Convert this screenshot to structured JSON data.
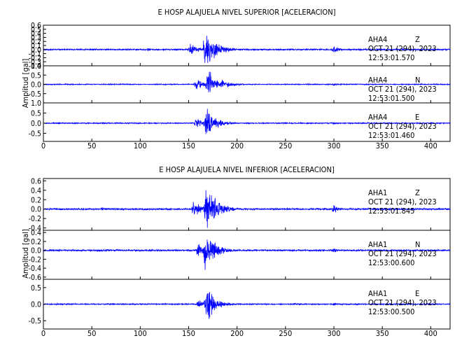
{
  "chart_data": [
    {
      "type": "line",
      "title": "E HOSP ALAJUELA NIVEL SUPERIOR [ACELERACION]",
      "ylabel": "Amplitud [gal]",
      "xlim": [
        0,
        420
      ],
      "x_ticks": [
        "0",
        "50",
        "100",
        "150",
        "200",
        "250",
        "300",
        "350",
        "400"
      ],
      "line_color": "#0000ff",
      "traces": [
        {
          "station": "AHA4",
          "component": "Z",
          "date": "OCT 21 (294), 2023",
          "time": "12:53:01.570",
          "ylim": [
            -0.4,
            0.6
          ],
          "y_ticks": [
            "0.6",
            "0.5",
            "0.4",
            "0.3",
            "0.2",
            "0.1",
            "0.0",
            "-0.1",
            "-0.2",
            "-0.3",
            "-0.4"
          ],
          "noise_amplitude": 0.02,
          "events": [
            {
              "time": 108,
              "peak": 0.05,
              "duration": 8
            },
            {
              "time": 152,
              "peak": 0.18,
              "duration": 20
            },
            {
              "time": 167,
              "peak": 0.55,
              "duration": 25
            },
            {
              "time": 300,
              "peak": 0.12,
              "duration": 12
            }
          ],
          "seed": 11
        },
        {
          "station": "AHA4",
          "component": "N",
          "date": "OCT 21 (294), 2023",
          "time": "12:53:01.500",
          "ylim": [
            -1.0,
            1.0
          ],
          "y_ticks": [
            "1.0",
            "0.5",
            "0.0",
            "-0.5"
          ],
          "noise_amplitude": 0.03,
          "events": [
            {
              "time": 158,
              "peak": 0.35,
              "duration": 18
            },
            {
              "time": 170,
              "peak": 0.95,
              "duration": 25
            },
            {
              "time": 300,
              "peak": 0.08,
              "duration": 10
            }
          ],
          "seed": 23
        },
        {
          "station": "AHA4",
          "component": "E",
          "date": "OCT 21 (294), 2023",
          "time": "12:53:01.460",
          "ylim": [
            -0.9,
            1.0
          ],
          "y_ticks": [
            "1.0",
            "0.5",
            "0.0",
            "-0.5"
          ],
          "noise_amplitude": 0.03,
          "events": [
            {
              "time": 158,
              "peak": 0.3,
              "duration": 16
            },
            {
              "time": 168,
              "peak": 0.95,
              "duration": 22
            },
            {
              "time": 300,
              "peak": 0.08,
              "duration": 10
            }
          ],
          "seed": 37
        }
      ]
    },
    {
      "type": "line",
      "title": "E HOSP ALAJUELA NIVEL INFERIOR [ACELERACION]",
      "ylabel": "Amplitud [gal]",
      "xlim": [
        0,
        420
      ],
      "x_ticks": [
        "0",
        "50",
        "100",
        "150",
        "200",
        "250",
        "300",
        "350",
        "400"
      ],
      "line_color": "#0000ff",
      "traces": [
        {
          "station": "AHA1",
          "component": "Z",
          "date": "OCT 21 (294), 2023",
          "time": "12:53:01.845",
          "ylim": [
            -0.45,
            0.65
          ],
          "y_ticks": [
            "0.6",
            "0.4",
            "0.2",
            "0.0",
            "-0.2",
            "-0.4"
          ],
          "noise_amplitude": 0.02,
          "events": [
            {
              "time": 60,
              "peak": 0.04,
              "duration": 20
            },
            {
              "time": 155,
              "peak": 0.2,
              "duration": 18
            },
            {
              "time": 168,
              "peak": 0.6,
              "duration": 24
            },
            {
              "time": 300,
              "peak": 0.12,
              "duration": 12
            }
          ],
          "seed": 51
        },
        {
          "station": "AHA1",
          "component": "N",
          "date": "OCT 21 (294), 2023",
          "time": "12:53:00.600",
          "ylim": [
            -0.65,
            0.45
          ],
          "y_ticks": [
            "0.4",
            "0.2",
            "0.0",
            "-0.2",
            "-0.4",
            "-0.6"
          ],
          "noise_amplitude": 0.02,
          "events": [
            {
              "time": 160,
              "peak": 0.2,
              "duration": 15
            },
            {
              "time": 167,
              "peak": 0.55,
              "duration": 22
            },
            {
              "time": 300,
              "peak": 0.06,
              "duration": 10
            }
          ],
          "seed": 67
        },
        {
          "station": "AHA1",
          "component": "E",
          "date": "OCT 21 (294), 2023",
          "time": "12:53:00.500",
          "ylim": [
            -0.75,
            0.75
          ],
          "y_ticks": [
            "0.5",
            "0.0",
            "-0.5"
          ],
          "noise_amplitude": 0.02,
          "events": [
            {
              "time": 160,
              "peak": 0.15,
              "duration": 15
            },
            {
              "time": 168,
              "peak": 0.7,
              "duration": 20
            },
            {
              "time": 300,
              "peak": 0.05,
              "duration": 10
            }
          ],
          "seed": 79
        }
      ]
    }
  ]
}
